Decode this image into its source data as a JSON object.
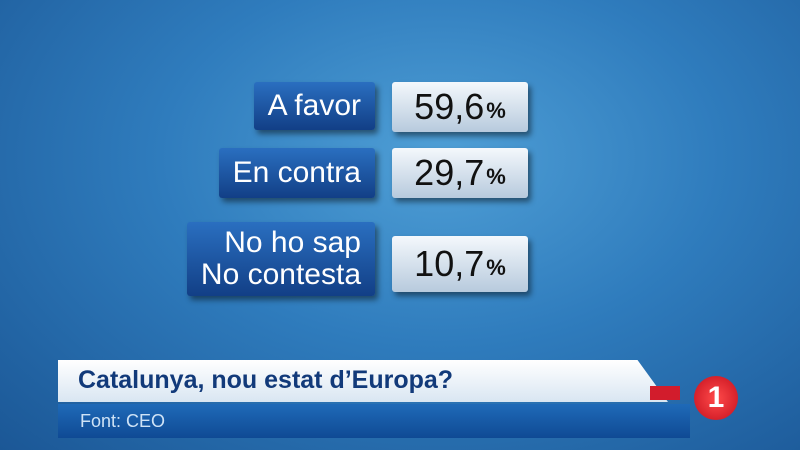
{
  "rows": [
    {
      "label": [
        "A favor"
      ],
      "value": "59,6",
      "unit": "%"
    },
    {
      "label": [
        "En contra"
      ],
      "value": "29,7",
      "unit": "%"
    },
    {
      "label": [
        "No ho sap",
        "No contesta"
      ],
      "value": "10,7",
      "unit": "%"
    }
  ],
  "banner": {
    "title": "Catalunya, nou estat d’Europa?",
    "source": "Font: CEO"
  },
  "logo": "1"
}
